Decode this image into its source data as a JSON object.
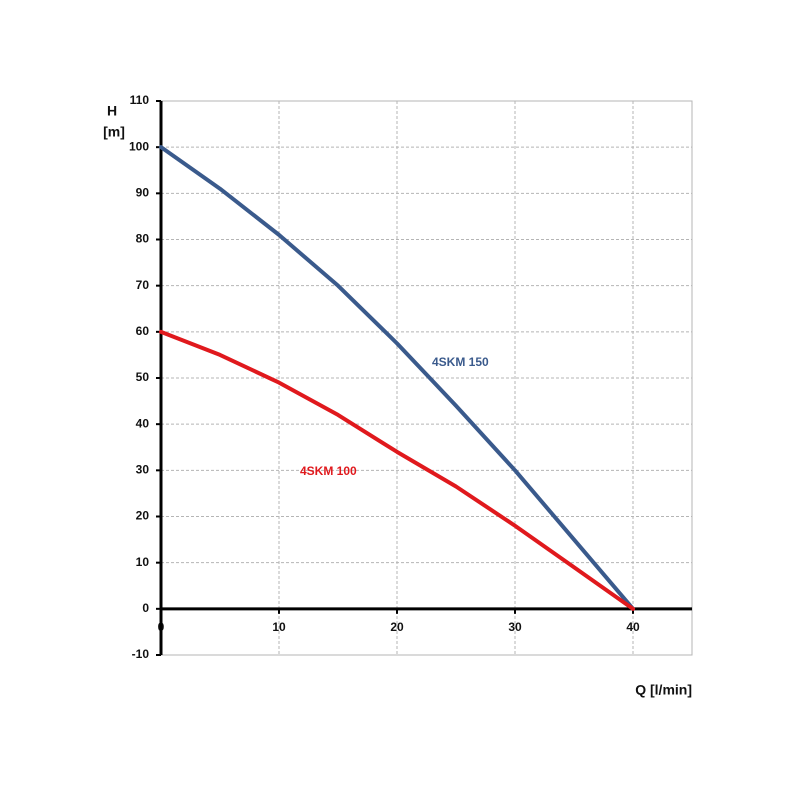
{
  "chart_data": {
    "type": "line",
    "y_label": [
      "H",
      "[m]"
    ],
    "x_label": "Q [l/min]",
    "x": [
      0,
      5,
      10,
      15,
      20,
      25,
      30,
      35,
      40
    ],
    "series": [
      {
        "name": "4SKM 150",
        "color": "#3a5a8c",
        "values": [
          100,
          91,
          81,
          70,
          57.5,
          44,
          30,
          15,
          0
        ]
      },
      {
        "name": "4SKM 100",
        "color": "#e0191d",
        "values": [
          60,
          55,
          49,
          42,
          34,
          26.5,
          18,
          9,
          0
        ]
      }
    ],
    "xlim": [
      0,
      45
    ],
    "xticks": [
      0,
      10,
      20,
      30,
      40
    ],
    "ylim": [
      -10,
      110
    ],
    "yticks": [
      -10,
      0,
      10,
      20,
      30,
      40,
      50,
      60,
      70,
      80,
      90,
      100,
      110
    ],
    "grid": true
  }
}
